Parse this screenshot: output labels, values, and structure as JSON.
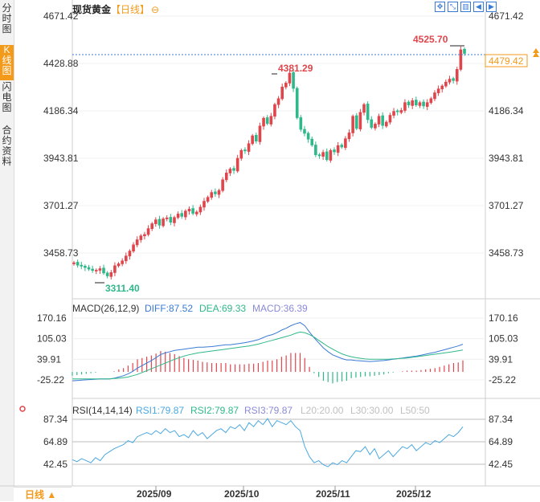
{
  "sidebar": {
    "tabs": [
      {
        "label": "分时图",
        "active": false
      },
      {
        "label": "K线图",
        "active": true
      },
      {
        "label": "闪电图",
        "active": false
      },
      {
        "label": "合约资料",
        "active": false
      }
    ]
  },
  "header": {
    "title": "现货黄金",
    "period_tag": "【日线】",
    "toolbar_icons": [
      "expand-icon",
      "shrink-icon",
      "bar-chart-icon",
      "left-arrow-icon",
      "right-arrow-icon"
    ]
  },
  "price_chart": {
    "yticks": [
      "4671.42",
      "4428.88",
      "4186.34",
      "3943.81",
      "3701.27",
      "3458.73"
    ],
    "current_price_label": "4479.42",
    "high_label": "4525.70",
    "mid_high_label": "4381.29",
    "low_label": "3311.40"
  },
  "macd": {
    "legend_title": "MACD(26,12,9)",
    "diff_label": "DIFF:87.52",
    "dea_label": "DEA:69.33",
    "macd_label": "MACD:36.39",
    "yticks": [
      "170.16",
      "105.03",
      "39.91",
      "-25.22"
    ]
  },
  "rsi": {
    "legend_title": "RSI(14,14,14)",
    "rsi1_label": "RSI1:79.87",
    "rsi2_label": "RSI2:79.87",
    "rsi3_label": "RSI3:79.87",
    "l20_label": "L20:20.00",
    "l30_label": "L30:30.00",
    "l50_label": "L50:50",
    "yticks": [
      "87.34",
      "64.89",
      "42.45"
    ]
  },
  "x_axis": {
    "labels": [
      "2025/09",
      "2025/10",
      "2025/11",
      "2025/12"
    ]
  },
  "footer": {
    "period_button": "日线 ▲"
  },
  "colors": {
    "up": "#e0454b",
    "down": "#2fb88a",
    "accent": "#f39a1b",
    "diff": "#3a7bd5",
    "dea": "#2fb88a"
  },
  "chart_data": [
    {
      "type": "candlestick",
      "title": "现货黄金 日线",
      "ylim": [
        3350,
        4700
      ],
      "yticks": [
        4671.42,
        4428.88,
        4186.34,
        3943.81,
        3701.27,
        3458.73
      ],
      "annotations": {
        "high": 4525.7,
        "mid_high": 4381.29,
        "low": 3311.4,
        "last": 4479.42
      },
      "closes": [
        3410,
        3395,
        3390,
        3383,
        3375,
        3368,
        3372,
        3380,
        3355,
        3340,
        3360,
        3395,
        3405,
        3420,
        3445,
        3470,
        3502,
        3528,
        3548,
        3555,
        3585,
        3610,
        3630,
        3600,
        3635,
        3640,
        3615,
        3642,
        3660,
        3645,
        3675,
        3685,
        3660,
        3670,
        3695,
        3725,
        3745,
        3770,
        3760,
        3780,
        3835,
        3870,
        3890,
        3880,
        3945,
        3985,
        3980,
        4020,
        4060,
        4030,
        4110,
        4150,
        4120,
        4160,
        4220,
        4250,
        4310,
        4330,
        4381,
        4300,
        4150,
        4090,
        4070,
        4040,
        4010,
        3960,
        3955,
        3975,
        3935,
        3985,
        3975,
        4010,
        4000,
        4045,
        4075,
        4160,
        4095,
        4180,
        4220,
        4140,
        4100,
        4120,
        4160,
        4110,
        4130,
        4165,
        4185,
        4180,
        4190,
        4230,
        4215,
        4240,
        4215,
        4230,
        4210,
        4230,
        4250,
        4280,
        4300,
        4315,
        4335,
        4350,
        4340,
        4400,
        4500,
        4479
      ]
    },
    {
      "type": "line",
      "title": "MACD(26,12,9)",
      "ylim": [
        -80,
        180
      ],
      "series": [
        {
          "name": "DIFF",
          "values": [
            -28,
            -27,
            -26,
            -25,
            -24,
            -23,
            -22,
            -22,
            -22,
            -20,
            -16,
            -12,
            -6,
            2,
            12,
            20,
            28,
            36,
            45,
            55,
            60,
            64,
            68,
            70,
            72,
            74,
            76,
            78,
            78,
            79,
            80,
            82,
            84,
            86,
            86,
            88,
            90,
            92,
            95,
            98,
            102,
            108,
            114,
            118,
            124,
            132,
            138,
            146,
            152,
            156,
            146,
            126,
            108,
            92,
            76,
            64,
            54,
            48,
            42,
            38,
            38,
            36,
            35,
            34,
            33,
            34,
            35,
            36,
            38,
            40,
            42,
            44,
            46,
            48,
            50,
            53,
            56,
            59,
            62,
            66,
            70,
            74,
            78,
            82,
            87.52
          ]
        },
        {
          "name": "DEA",
          "values": [
            -22,
            -22,
            -22,
            -22,
            -22,
            -22,
            -22,
            -22,
            -22,
            -21,
            -20,
            -18,
            -16,
            -12,
            -8,
            -2,
            4,
            10,
            16,
            22,
            28,
            34,
            40,
            45,
            50,
            54,
            57,
            60,
            62,
            64,
            66,
            68,
            70,
            72,
            74,
            76,
            78,
            80,
            82,
            85,
            88,
            92,
            96,
            100,
            104,
            108,
            112,
            116,
            122,
            126,
            124,
            118,
            110,
            100,
            90,
            80,
            72,
            64,
            57,
            52,
            48,
            45,
            43,
            41,
            40,
            40,
            40,
            40,
            40,
            41,
            42,
            43,
            44,
            46,
            48,
            50,
            52,
            54,
            56,
            58,
            60,
            62,
            64,
            67,
            69.33
          ]
        },
        {
          "name": "MACD",
          "values": [
            -12,
            -10,
            -8,
            -6,
            -4,
            -2,
            0,
            0,
            0,
            2,
            8,
            12,
            20,
            28,
            40,
            44,
            48,
            52,
            58,
            66,
            64,
            60,
            56,
            50,
            44,
            40,
            38,
            36,
            32,
            30,
            28,
            28,
            28,
            28,
            24,
            24,
            24,
            24,
            26,
            26,
            28,
            32,
            36,
            36,
            40,
            48,
            52,
            60,
            60,
            60,
            44,
            16,
            -4,
            -16,
            -28,
            -32,
            -36,
            -32,
            -30,
            -28,
            -20,
            -18,
            -16,
            -14,
            -14,
            -12,
            -10,
            -8,
            -4,
            -2,
            0,
            2,
            4,
            4,
            4,
            6,
            8,
            10,
            12,
            16,
            20,
            24,
            28,
            30,
            36.39
          ]
        }
      ]
    },
    {
      "type": "line",
      "title": "RSI(14,14,14)",
      "ylim": [
        35,
        95
      ],
      "yticks": [
        87.34,
        64.89,
        42.45
      ],
      "series": [
        {
          "name": "RSI1",
          "values": [
            47,
            45,
            48,
            46,
            44,
            49,
            46,
            52,
            55,
            58,
            60,
            62,
            66,
            64,
            70,
            72,
            74,
            72,
            76,
            73,
            78,
            74,
            76,
            70,
            72,
            69,
            76,
            71,
            74,
            68,
            72,
            76,
            78,
            74,
            80,
            78,
            82,
            76,
            84,
            80,
            86,
            82,
            88,
            80,
            86,
            84,
            82,
            86,
            80,
            76,
            60,
            50,
            44,
            46,
            42,
            40,
            44,
            42,
            46,
            44,
            50,
            56,
            55,
            60,
            52,
            58,
            48,
            52,
            56,
            50,
            55,
            60,
            58,
            62,
            56,
            60,
            64,
            62,
            66,
            64,
            68,
            72,
            70,
            74,
            79.87
          ]
        }
      ]
    }
  ]
}
